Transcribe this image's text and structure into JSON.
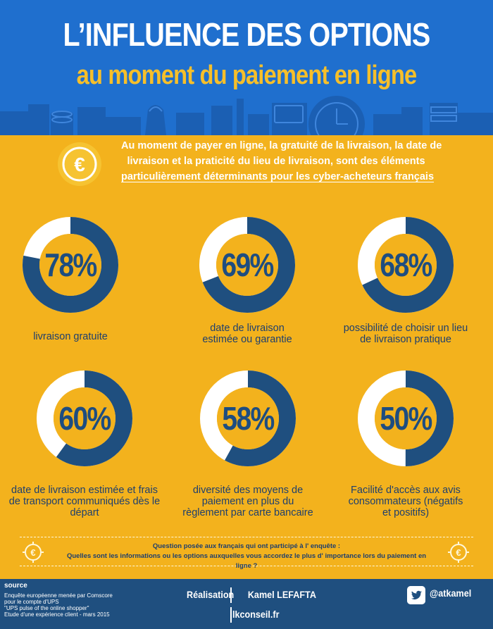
{
  "header": {
    "title_line1": "L’INFLUENCE DES OPTIONS",
    "title_line2": "au moment du paiement en ligne"
  },
  "intro": {
    "line1": "Au moment de payer en ligne, la gratuité de la livraison, la date de",
    "line2": "livraison et la praticité du lieu de livraison, sont des éléments",
    "line3": "particulièrement déterminants pour les cyber-acheteurs français"
  },
  "stats": [
    {
      "pct_label": "78%",
      "value": 78,
      "label": "livraison gratuite"
    },
    {
      "pct_label": "69%",
      "value": 69,
      "label": "date de livraison estimée ou garantie"
    },
    {
      "pct_label": "68%",
      "value": 68,
      "label": "possibilité de choisir un lieu de livraison pratique"
    },
    {
      "pct_label": "60%",
      "value": 60,
      "label": "date de livraison estimée et frais de transport communiqués dès le départ"
    },
    {
      "pct_label": "58%",
      "value": 58,
      "label": "diversité des moyens de paiement en plus du règlement par carte bancaire"
    },
    {
      "pct_label": "50%",
      "value": 50,
      "label": "Facilité d'accès aux avis consommateurs (négatifs et positifs)"
    }
  ],
  "question": {
    "line1": "Question posée aux français qui ont participé à l' enquête :",
    "line2": "Quelles sont les informations ou les options auxquelles vous accordez le plus d' importance lors du paiement en ligne ?"
  },
  "footer": {
    "source_title": "source",
    "source_lines": [
      "Enquête européenne menée par Comscore",
      "pour le compte d'UPS",
      "\"UPS pulse of the online shopper\"",
      "Etude d'une expérience client - mars 2015"
    ],
    "realisation": "Réalisation",
    "author": "Kamel LEFAFTA",
    "site": "lkconseil.fr",
    "twitter": "@atkamel"
  },
  "colors": {
    "header_bg": "#1f6fce",
    "body_bg": "#f3b21d",
    "donut_dark": "#1f4f7f",
    "donut_light": "#ffffff",
    "donut_center": "#f3b21d",
    "footer_bg": "#1f4f7f"
  },
  "icons": [
    "euro-coin-icon",
    "money-bag-icon",
    "credit-card-icon",
    "clock-icon",
    "coin-stack-icon",
    "twitter-icon"
  ]
}
